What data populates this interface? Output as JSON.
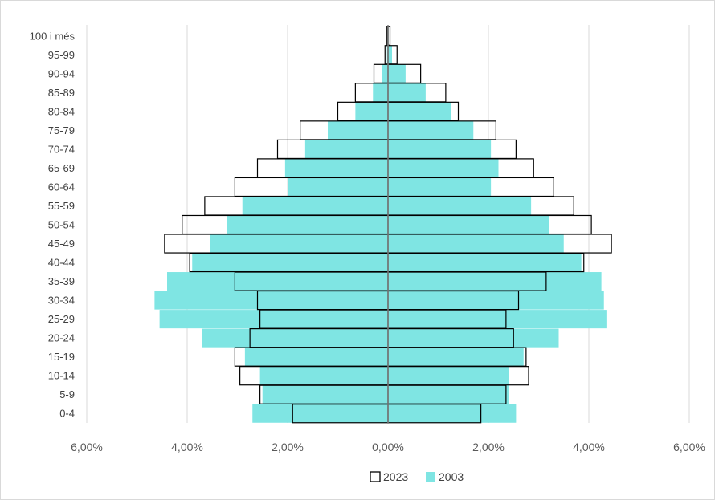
{
  "chart_data": {
    "type": "bar",
    "orientation": "horizontal",
    "style": "population-pyramid",
    "title": "",
    "xlabel": "",
    "ylabel": "",
    "categories": [
      "0-4",
      "5-9",
      "10-14",
      "15-19",
      "20-24",
      "25-29",
      "30-34",
      "35-39",
      "40-44",
      "45-49",
      "50-54",
      "55-59",
      "60-64",
      "65-69",
      "70-74",
      "75-79",
      "80-84",
      "85-89",
      "90-94",
      "95-99",
      "100 i més"
    ],
    "xlim": [
      -6,
      6
    ],
    "x_ticks": [
      -6,
      -4,
      -2,
      0,
      2,
      4,
      6
    ],
    "x_tick_labels": [
      "6,00%",
      "4,00%",
      "2,00%",
      "0,00%",
      "2,00%",
      "4,00%",
      "6,00%"
    ],
    "grid": "vertical",
    "legend_position": "bottom",
    "series": [
      {
        "name": "2023",
        "style": "outline",
        "color": "#000000",
        "left": [
          1.9,
          2.55,
          2.95,
          3.05,
          2.75,
          2.55,
          2.6,
          3.05,
          3.95,
          4.45,
          4.1,
          3.65,
          3.05,
          2.6,
          2.2,
          1.75,
          1.0,
          0.65,
          0.28,
          0.06,
          0.02
        ],
        "right": [
          1.85,
          2.35,
          2.8,
          2.75,
          2.5,
          2.35,
          2.6,
          3.15,
          3.9,
          4.45,
          4.05,
          3.7,
          3.3,
          2.9,
          2.55,
          2.15,
          1.4,
          1.15,
          0.65,
          0.18,
          0.04
        ]
      },
      {
        "name": "2003",
        "style": "fill",
        "color": "#7fe5e3",
        "left": [
          2.7,
          2.5,
          2.55,
          2.85,
          3.7,
          4.55,
          4.65,
          4.4,
          3.9,
          3.55,
          3.2,
          2.9,
          2.0,
          2.05,
          1.65,
          1.2,
          0.65,
          0.3,
          0.12,
          0.02,
          0.0
        ],
        "right": [
          2.55,
          2.4,
          2.4,
          2.7,
          3.4,
          4.35,
          4.3,
          4.25,
          3.85,
          3.5,
          3.2,
          2.85,
          2.05,
          2.2,
          2.05,
          1.7,
          1.25,
          0.75,
          0.35,
          0.08,
          0.01
        ]
      }
    ]
  }
}
